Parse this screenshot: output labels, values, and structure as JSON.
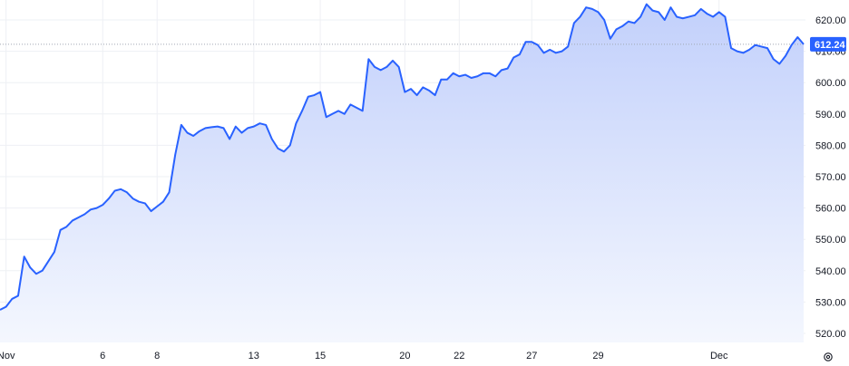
{
  "chart_data": {
    "type": "area",
    "title": "",
    "xlabel": "",
    "ylabel": "",
    "ylim": [
      517,
      626
    ],
    "y_ticks": [
      520,
      530,
      540,
      550,
      560,
      570,
      580,
      590,
      600,
      610,
      620
    ],
    "y_tick_labels": [
      "520.00",
      "530.00",
      "540.00",
      "550.00",
      "560.00",
      "570.00",
      "580.00",
      "590.00",
      "600.00",
      "610.00",
      "620.00"
    ],
    "x_tick_labels": [
      "Nov",
      "6",
      "8",
      "13",
      "15",
      "20",
      "22",
      "27",
      "29",
      "Dec"
    ],
    "grid": true,
    "last_value_label": "612.24",
    "series": [
      {
        "values": [
          527.5,
          528.5,
          531,
          532,
          544.5,
          541,
          539,
          540,
          543,
          546,
          553,
          554,
          556,
          557,
          558,
          559.5,
          560,
          561,
          563,
          565.5,
          566,
          565,
          563,
          562,
          561.5,
          559,
          560.5,
          562,
          565,
          577,
          586.5,
          584,
          583,
          584.5,
          585.5,
          585.8,
          586,
          585.5,
          582,
          586,
          584,
          585.5,
          586,
          587,
          586.5,
          582,
          579,
          578,
          580,
          587,
          591,
          595.5,
          596,
          597,
          589,
          590,
          591,
          590,
          593,
          592,
          591,
          607.5,
          605,
          604,
          605,
          607,
          605,
          597,
          598,
          596,
          598.5,
          597.5,
          596,
          601,
          601,
          603,
          602,
          602.5,
          601.5,
          602,
          603,
          603,
          602,
          604,
          604.5,
          608,
          609,
          613,
          613,
          612,
          609.5,
          610.5,
          609.5,
          610,
          611.5,
          619,
          621,
          624,
          623.5,
          622.5,
          620,
          614,
          617,
          618,
          619.5,
          619,
          621,
          625,
          623,
          622.5,
          620,
          624,
          621,
          620.5,
          621,
          621.5,
          623.5,
          622,
          621,
          622.5,
          621,
          611,
          610,
          609.5,
          610.5,
          612,
          611.5,
          611,
          607.5,
          606,
          608.5,
          612,
          614.5,
          612.24
        ]
      }
    ],
    "colors": {
      "line": "#2962ff",
      "area_top": "#c2d0fb",
      "area_bottom": "#f4f7fe",
      "grid": "#eef0f4",
      "text": "#131722",
      "badge": "#2962ff",
      "last_price_line": "#a0a6b4"
    }
  },
  "axis_icons": {
    "settings": "gear-icon"
  }
}
